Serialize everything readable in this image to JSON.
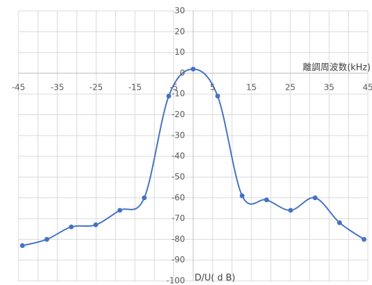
{
  "chart_data": {
    "type": "line",
    "x_label": "離調周波数(kHz)",
    "y_label": "D/U( d B)",
    "x": [
      -44,
      -37.7,
      -31.4,
      -25.1,
      -18.9,
      -12.6,
      -6.3,
      0,
      6.3,
      12.6,
      18.9,
      25.1,
      31.4,
      37.7,
      44
    ],
    "values": [
      -83,
      -80,
      -74,
      -73,
      -66,
      -60,
      -11,
      2,
      -11,
      -59,
      -61,
      -66,
      -60,
      -72,
      -80
    ],
    "color": "#4472c4",
    "xlim": [
      -45,
      45
    ],
    "xticks": [
      -45,
      -35,
      -25,
      -15,
      -5,
      5,
      15,
      25,
      35,
      45
    ],
    "xminor": [
      -40,
      -30,
      -20,
      -10,
      0,
      10,
      20,
      30,
      40
    ],
    "ylim": [
      -100,
      30
    ],
    "yticks": [
      -100,
      -90,
      -80,
      -70,
      -60,
      -50,
      -40,
      -30,
      -20,
      -10,
      0,
      10,
      20,
      30
    ],
    "grid": true
  }
}
